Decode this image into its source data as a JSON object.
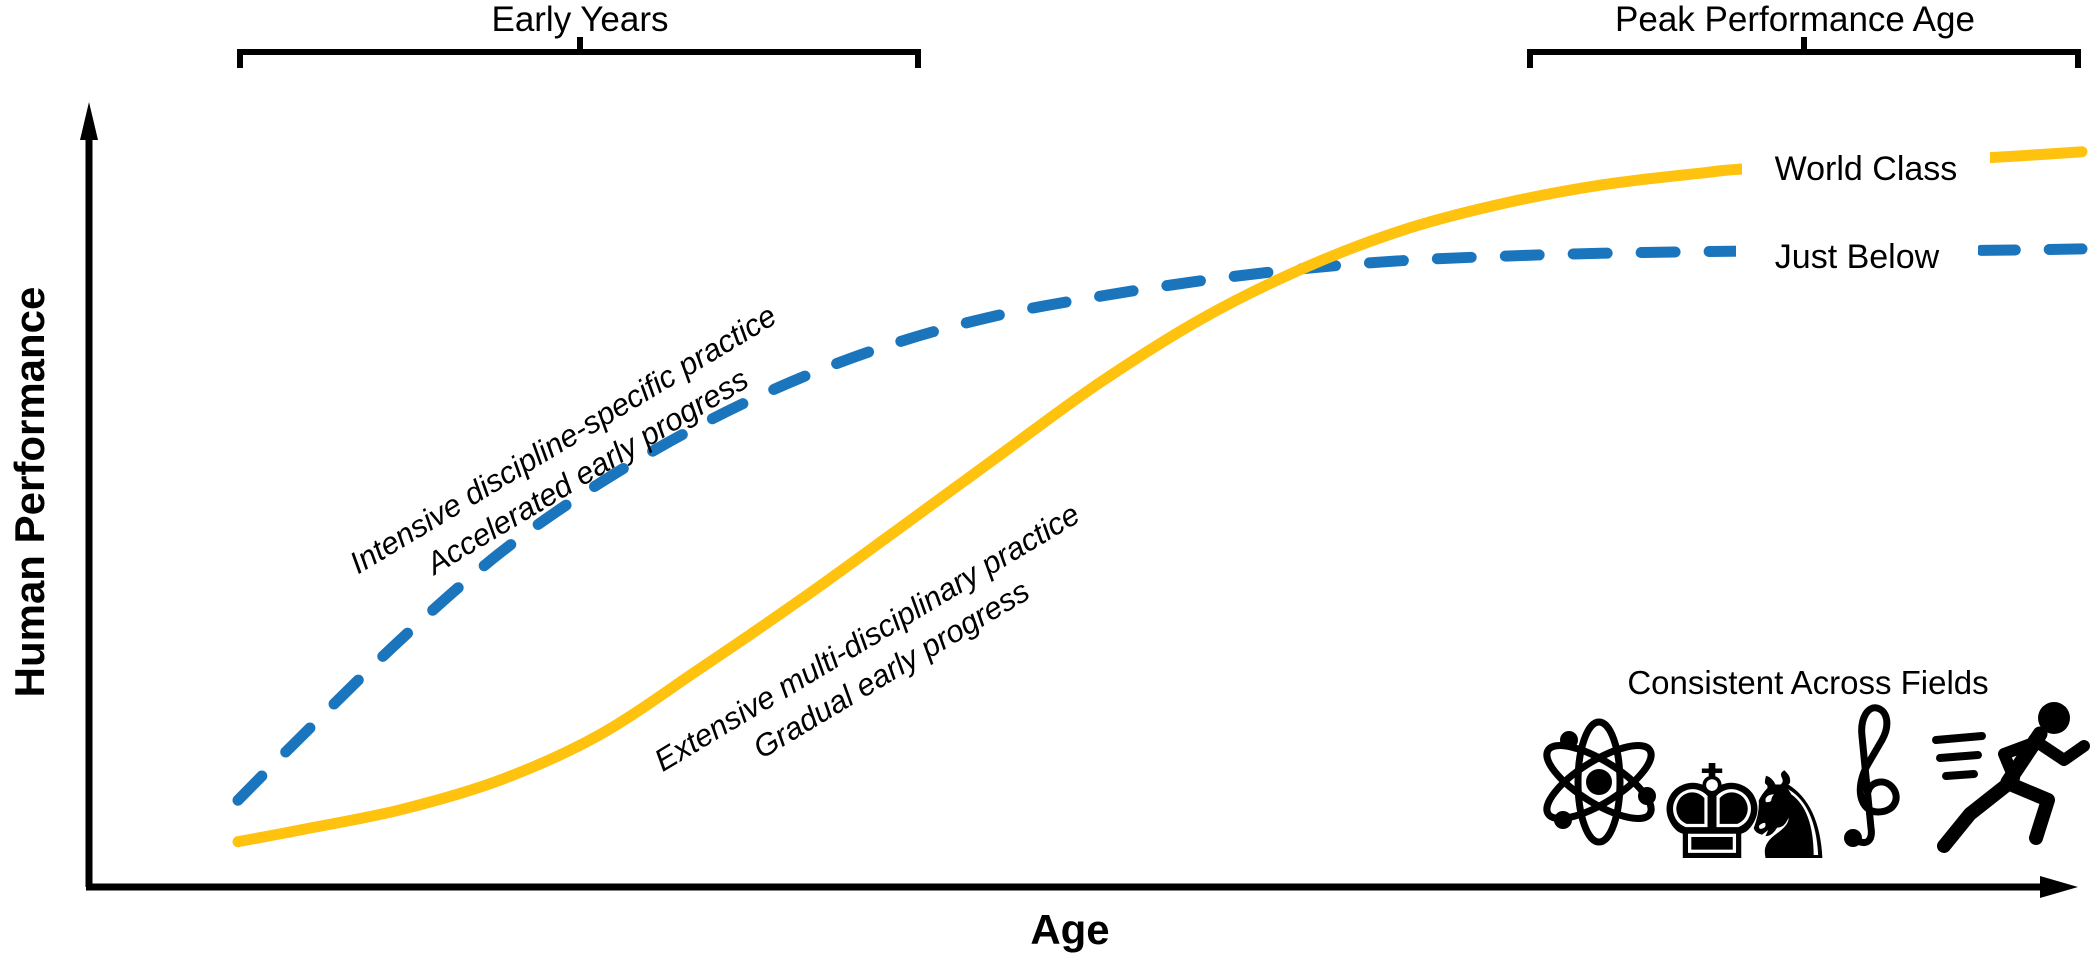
{
  "figure": {
    "background_color": "#ffffff",
    "axis_color": "#000000"
  },
  "brackets": [
    {
      "label": "Early Years",
      "age_span": [
        0,
        37
      ]
    },
    {
      "label": "Peak Performance Age",
      "age_span": [
        70,
        100
      ]
    }
  ],
  "fields_note": {
    "label": "Consistent Across Fields",
    "icons": [
      "atom-icon",
      "chess-king-icon",
      "chess-knight-icon",
      "treble-clef-icon",
      "sprinter-icon"
    ],
    "chess_king_glyph": "♚",
    "chess_knight_glyph": "♞"
  },
  "chart_data": {
    "type": "line",
    "title": "",
    "xlabel": "Age",
    "ylabel": "Human Performance",
    "xlim": [
      0,
      100
    ],
    "ylim": [
      0,
      100
    ],
    "grid": false,
    "axis_style": "arrows, no ticks (conceptual sketch)",
    "legend_position": "inline labels at right end of each curve",
    "series": [
      {
        "name": "World Class",
        "line_style": "solid",
        "color": "#FFC20E",
        "annotation": [
          "Extensive multi-disciplinary practice",
          "Gradual early progress"
        ],
        "points": [
          [
            0,
            6.1
          ],
          [
            3.4,
            7.7
          ],
          [
            8.8,
            10.4
          ],
          [
            14.2,
            14.4
          ],
          [
            19.6,
            20.5
          ],
          [
            25.1,
            29.5
          ],
          [
            30.5,
            38.7
          ],
          [
            35.9,
            48.4
          ],
          [
            41.3,
            58.2
          ],
          [
            46.7,
            67.9
          ],
          [
            52.2,
            76.5
          ],
          [
            57.6,
            83.2
          ],
          [
            63,
            88.4
          ],
          [
            68.4,
            92
          ],
          [
            73.9,
            94.6
          ],
          [
            79.3,
            96.2
          ],
          [
            82.5,
            96.9
          ],
          [
            94.2,
            98.2
          ],
          [
            100,
            99.1
          ]
        ]
      },
      {
        "name": "Just Below",
        "line_style": "dashed",
        "color": "#1B75BC",
        "annotation": [
          "Intensive discipline-specific practice",
          "Accelerated early progress"
        ],
        "points": [
          [
            0,
            11.7
          ],
          [
            3.4,
            20.2
          ],
          [
            8.8,
            33.3
          ],
          [
            14.2,
            45
          ],
          [
            19.6,
            54.4
          ],
          [
            25.1,
            62.3
          ],
          [
            30.5,
            68.6
          ],
          [
            35.9,
            73.5
          ],
          [
            41.3,
            77.1
          ],
          [
            46.7,
            79.6
          ],
          [
            52.2,
            81.7
          ],
          [
            57.6,
            83.3
          ],
          [
            63,
            84.4
          ],
          [
            68.4,
            85
          ],
          [
            73.9,
            85.4
          ],
          [
            82,
            85.7
          ],
          [
            94.2,
            85.8
          ],
          [
            100,
            86
          ]
        ]
      }
    ]
  }
}
